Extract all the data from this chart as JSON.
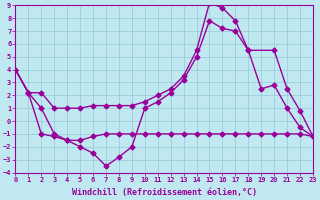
{
  "xlabel": "Windchill (Refroidissement éolien,°C)",
  "xlim": [
    0,
    23
  ],
  "ylim": [
    -4,
    9
  ],
  "yticks": [
    -4,
    -3,
    -2,
    -1,
    0,
    1,
    2,
    3,
    4,
    5,
    6,
    7,
    8,
    9
  ],
  "xticks": [
    0,
    1,
    2,
    3,
    4,
    5,
    6,
    7,
    8,
    9,
    10,
    11,
    12,
    13,
    14,
    15,
    16,
    17,
    18,
    19,
    20,
    21,
    22,
    23
  ],
  "background_color": "#c0e8f0",
  "grid_color": "#98c8d8",
  "line_color": "#990099",
  "line1_x": [
    0,
    1,
    2,
    3,
    4,
    5,
    6,
    7,
    8,
    9,
    10,
    11,
    12,
    13,
    14,
    15,
    16,
    17,
    18,
    20,
    21,
    22,
    23
  ],
  "line1_y": [
    4.0,
    2.2,
    2.2,
    1.0,
    1.0,
    1.0,
    1.2,
    1.2,
    1.2,
    1.2,
    1.5,
    2.0,
    2.5,
    3.5,
    5.5,
    9.2,
    8.8,
    7.8,
    5.5,
    5.5,
    2.5,
    0.8,
    -1.2
  ],
  "line2_x": [
    0,
    1,
    2,
    3,
    4,
    5,
    6,
    7,
    8,
    9,
    10,
    11,
    12,
    13,
    14,
    15,
    16,
    17,
    18,
    19,
    20,
    21,
    22,
    23
  ],
  "line2_y": [
    4.0,
    2.2,
    1.0,
    -1.0,
    -1.5,
    -2.0,
    -2.5,
    -3.5,
    -2.8,
    -2.0,
    1.0,
    1.5,
    2.2,
    3.2,
    5.0,
    7.8,
    7.2,
    7.0,
    5.5,
    2.5,
    2.8,
    1.0,
    -0.5,
    -1.2
  ],
  "line3_x": [
    0,
    1,
    2,
    3,
    4,
    5,
    6,
    7,
    8,
    9,
    10,
    11,
    12,
    13,
    14,
    15,
    16,
    17,
    18,
    19,
    20,
    21,
    22,
    23
  ],
  "line3_y": [
    4.0,
    2.2,
    -1.0,
    -1.2,
    -1.5,
    -1.5,
    -1.2,
    -1.0,
    -1.0,
    -1.0,
    -1.0,
    -1.0,
    -1.0,
    -1.0,
    -1.0,
    -1.0,
    -1.0,
    -1.0,
    -1.0,
    -1.0,
    -1.0,
    -1.0,
    -1.0,
    -1.2
  ],
  "marker": "D",
  "markersize": 2.5,
  "linewidth": 1.0,
  "tick_fontsize": 5,
  "label_fontsize": 6
}
